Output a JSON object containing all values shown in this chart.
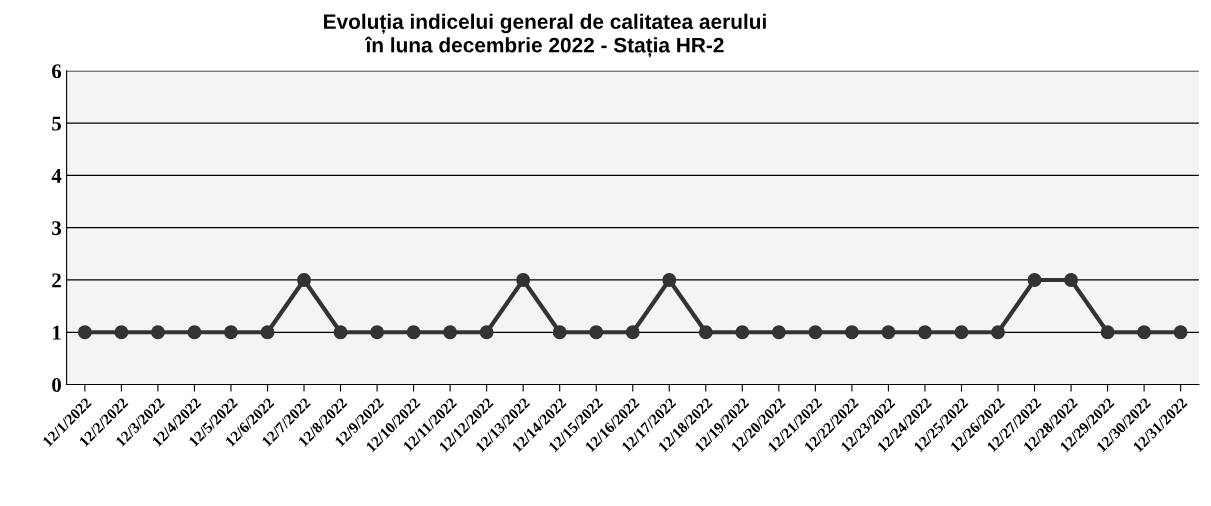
{
  "chart_data": {
    "type": "line",
    "title": "Evoluția indicelui general de calitatea aerului\nîn luna decembrie 2022 - Stația HR-2",
    "categories": [
      "12/1/2022",
      "12/2/2022",
      "12/3/2022",
      "12/4/2022",
      "12/5/2022",
      "12/6/2022",
      "12/7/2022",
      "12/8/2022",
      "12/9/2022",
      "12/10/2022",
      "12/11/2022",
      "12/12/2022",
      "12/13/2022",
      "12/14/2022",
      "12/15/2022",
      "12/16/2022",
      "12/17/2022",
      "12/18/2022",
      "12/19/2022",
      "12/20/2022",
      "12/21/2022",
      "12/22/2022",
      "12/23/2022",
      "12/24/2022",
      "12/25/2022",
      "12/26/2022",
      "12/27/2022",
      "12/28/2022",
      "12/29/2022",
      "12/30/2022",
      "12/31/2022"
    ],
    "values": [
      1,
      1,
      1,
      1,
      1,
      1,
      2,
      1,
      1,
      1,
      1,
      1,
      2,
      1,
      1,
      1,
      2,
      1,
      1,
      1,
      1,
      1,
      1,
      1,
      1,
      1,
      2,
      2,
      1,
      1,
      1
    ],
    "color": "#333333",
    "ylim": [
      0,
      6
    ],
    "yticks": [
      0,
      1,
      2,
      3,
      4,
      5,
      6
    ],
    "grid": "y",
    "marker": "circle",
    "line_style": "solid",
    "legend": false
  }
}
